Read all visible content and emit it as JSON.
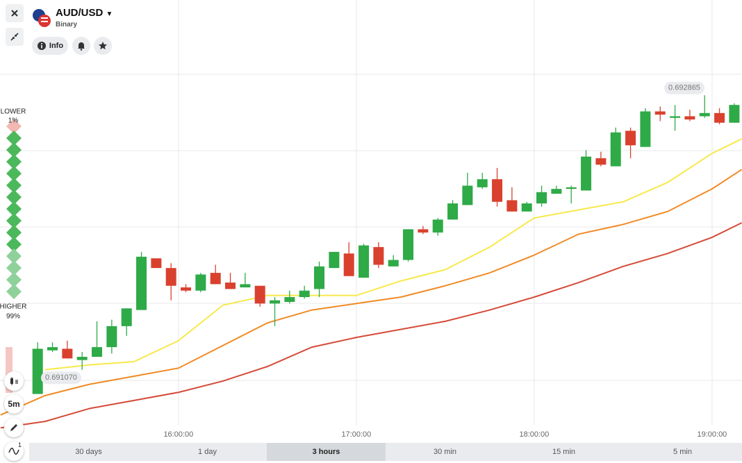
{
  "header": {
    "symbol": "AUD/USD",
    "subtitle": "Binary",
    "info": "Info"
  },
  "sentiment": {
    "lower": {
      "label": "LOWER",
      "value": 1,
      "value_label": "1%"
    },
    "higher": {
      "label": "HIGHER",
      "value": 99,
      "value_label": "99%"
    }
  },
  "toolbar": {
    "interval": "5m",
    "indicator_count": 1
  },
  "timeframes": [
    "30 days",
    "1 day",
    "3 hours",
    "30 min",
    "15 min",
    "5 min"
  ],
  "active_timeframe": 2,
  "chart_data": {
    "type": "candlestick",
    "up_color": "#2eaa47",
    "down_color": "#d9412e",
    "xlim": [
      899.8,
      1150.1
    ],
    "ylim": [
      0.69068,
      0.69341
    ],
    "xticks": [
      {
        "value": 960,
        "label": "16:00:00"
      },
      {
        "value": 1020,
        "label": "17:00:00"
      },
      {
        "value": 1080,
        "label": "18:00:00"
      },
      {
        "value": 1140,
        "label": "19:00:00"
      }
    ],
    "x": [
      912.5,
      917.5,
      922.5,
      927.5,
      932.5,
      937.5,
      942.5,
      947.5,
      952.5,
      957.5,
      962.5,
      967.5,
      972.5,
      977.5,
      982.5,
      987.5,
      992.5,
      997.5,
      1002.5,
      1007.5,
      1012.5,
      1017.5,
      1022.5,
      1027.5,
      1032.5,
      1037.5,
      1042.5,
      1047.5,
      1052.5,
      1057.5,
      1062.5,
      1067.5,
      1072.5,
      1077.5,
      1082.5,
      1087.5,
      1092.5,
      1097.5,
      1102.5,
      1107.5,
      1112.5,
      1117.5,
      1122.5,
      1127.5,
      1132.5,
      1137.5,
      1142.5,
      1147.5
    ],
    "open": [
      0.69097,
      0.69124,
      0.69125,
      0.69118,
      0.6912,
      0.69126,
      0.69139,
      0.69149,
      0.69181,
      0.69175,
      0.69163,
      0.69161,
      0.69172,
      0.69166,
      0.69163,
      0.69164,
      0.69153,
      0.69154,
      0.69157,
      0.69162,
      0.69175,
      0.69184,
      0.69169,
      0.69188,
      0.69176,
      0.6918,
      0.69199,
      0.69197,
      0.69205,
      0.69214,
      0.69225,
      0.6923,
      0.69217,
      0.6921,
      0.69215,
      0.69221,
      0.69224,
      0.69223,
      0.69243,
      0.69238,
      0.6926,
      0.6925,
      0.69272,
      0.69268,
      0.69269,
      0.69269,
      0.69271,
      0.69265
    ],
    "high": [
      0.69129,
      0.69129,
      0.6913,
      0.69123,
      0.69142,
      0.69143,
      0.6915,
      0.69185,
      0.69181,
      0.69178,
      0.69165,
      0.69172,
      0.69177,
      0.69172,
      0.69172,
      0.69164,
      0.69157,
      0.69161,
      0.69164,
      0.69179,
      0.69185,
      0.69191,
      0.6919,
      0.69191,
      0.69183,
      0.69199,
      0.69201,
      0.69206,
      0.69217,
      0.69234,
      0.69234,
      0.69237,
      0.69225,
      0.69216,
      0.69226,
      0.69226,
      0.69226,
      0.69248,
      0.69247,
      0.69262,
      0.69262,
      0.69274,
      0.69275,
      0.69276,
      0.69273,
      0.69282,
      0.69274,
      0.69277
    ],
    "low": [
      0.69097,
      0.69123,
      0.69119,
      0.69112,
      0.6912,
      0.69122,
      0.69133,
      0.69149,
      0.69175,
      0.69155,
      0.6916,
      0.6916,
      0.69165,
      0.69162,
      0.69163,
      0.69151,
      0.69139,
      0.69153,
      0.69156,
      0.69157,
      0.69175,
      0.6917,
      0.69169,
      0.69175,
      0.69176,
      0.69179,
      0.69196,
      0.69195,
      0.69205,
      0.69214,
      0.69224,
      0.69213,
      0.6921,
      0.6921,
      0.69213,
      0.69221,
      0.69215,
      0.69223,
      0.69238,
      0.69238,
      0.69243,
      0.6925,
      0.69266,
      0.6926,
      0.69266,
      0.69268,
      0.69264,
      0.69265
    ],
    "close": [
      0.69125,
      0.69126,
      0.69119,
      0.6912,
      0.69126,
      0.69139,
      0.6915,
      0.69182,
      0.69175,
      0.69164,
      0.69161,
      0.69171,
      0.69165,
      0.69162,
      0.69165,
      0.69153,
      0.69155,
      0.69157,
      0.69161,
      0.69176,
      0.69185,
      0.6917,
      0.69189,
      0.69177,
      0.6918,
      0.69199,
      0.69197,
      0.69205,
      0.69215,
      0.69226,
      0.6923,
      0.69216,
      0.6921,
      0.69215,
      0.69222,
      0.69224,
      0.69225,
      0.69244,
      0.69239,
      0.69259,
      0.69251,
      0.69272,
      0.6927,
      0.69269,
      0.69267,
      0.69271,
      0.69265,
      0.69276
    ],
    "series": [
      {
        "color": "#f7e94a",
        "x": [
          915,
          930,
          945,
          960,
          975,
          990,
          1005,
          1020,
          1035,
          1050,
          1065,
          1080,
          1095,
          1110,
          1125,
          1140,
          1150
        ],
        "values": [
          0.69112,
          0.69115,
          0.69117,
          0.6913,
          0.69152,
          0.69158,
          0.69158,
          0.69158,
          0.69167,
          0.69174,
          0.69188,
          0.69206,
          0.69211,
          0.69216,
          0.69228,
          0.69246,
          0.69255
        ]
      },
      {
        "color": "#f08a24",
        "x": [
          900,
          915,
          930,
          945,
          960,
          975,
          990,
          1005,
          1020,
          1035,
          1050,
          1065,
          1080,
          1095,
          1110,
          1125,
          1140,
          1150
        ],
        "values": [
          0.69084,
          0.69096,
          0.69103,
          0.69108,
          0.69113,
          0.69127,
          0.69141,
          0.69149,
          0.69153,
          0.69157,
          0.69164,
          0.69172,
          0.69183,
          0.69196,
          0.69202,
          0.6921,
          0.69224,
          0.69236
        ]
      },
      {
        "color": "#d44a38",
        "x": [
          900,
          915,
          930,
          945,
          960,
          975,
          990,
          1005,
          1020,
          1035,
          1050,
          1065,
          1080,
          1095,
          1110,
          1125,
          1140,
          1150
        ],
        "values": [
          0.69076,
          0.6908,
          0.69088,
          0.69093,
          0.69098,
          0.69105,
          0.69114,
          0.69126,
          0.69132,
          0.69137,
          0.69142,
          0.69149,
          0.69157,
          0.69166,
          0.69176,
          0.69184,
          0.69194,
          0.69203
        ]
      }
    ],
    "price_labels": [
      {
        "value": 0.69107,
        "label": "0.691070"
      },
      {
        "value": 0.692865,
        "label": "0.692865"
      }
    ]
  }
}
